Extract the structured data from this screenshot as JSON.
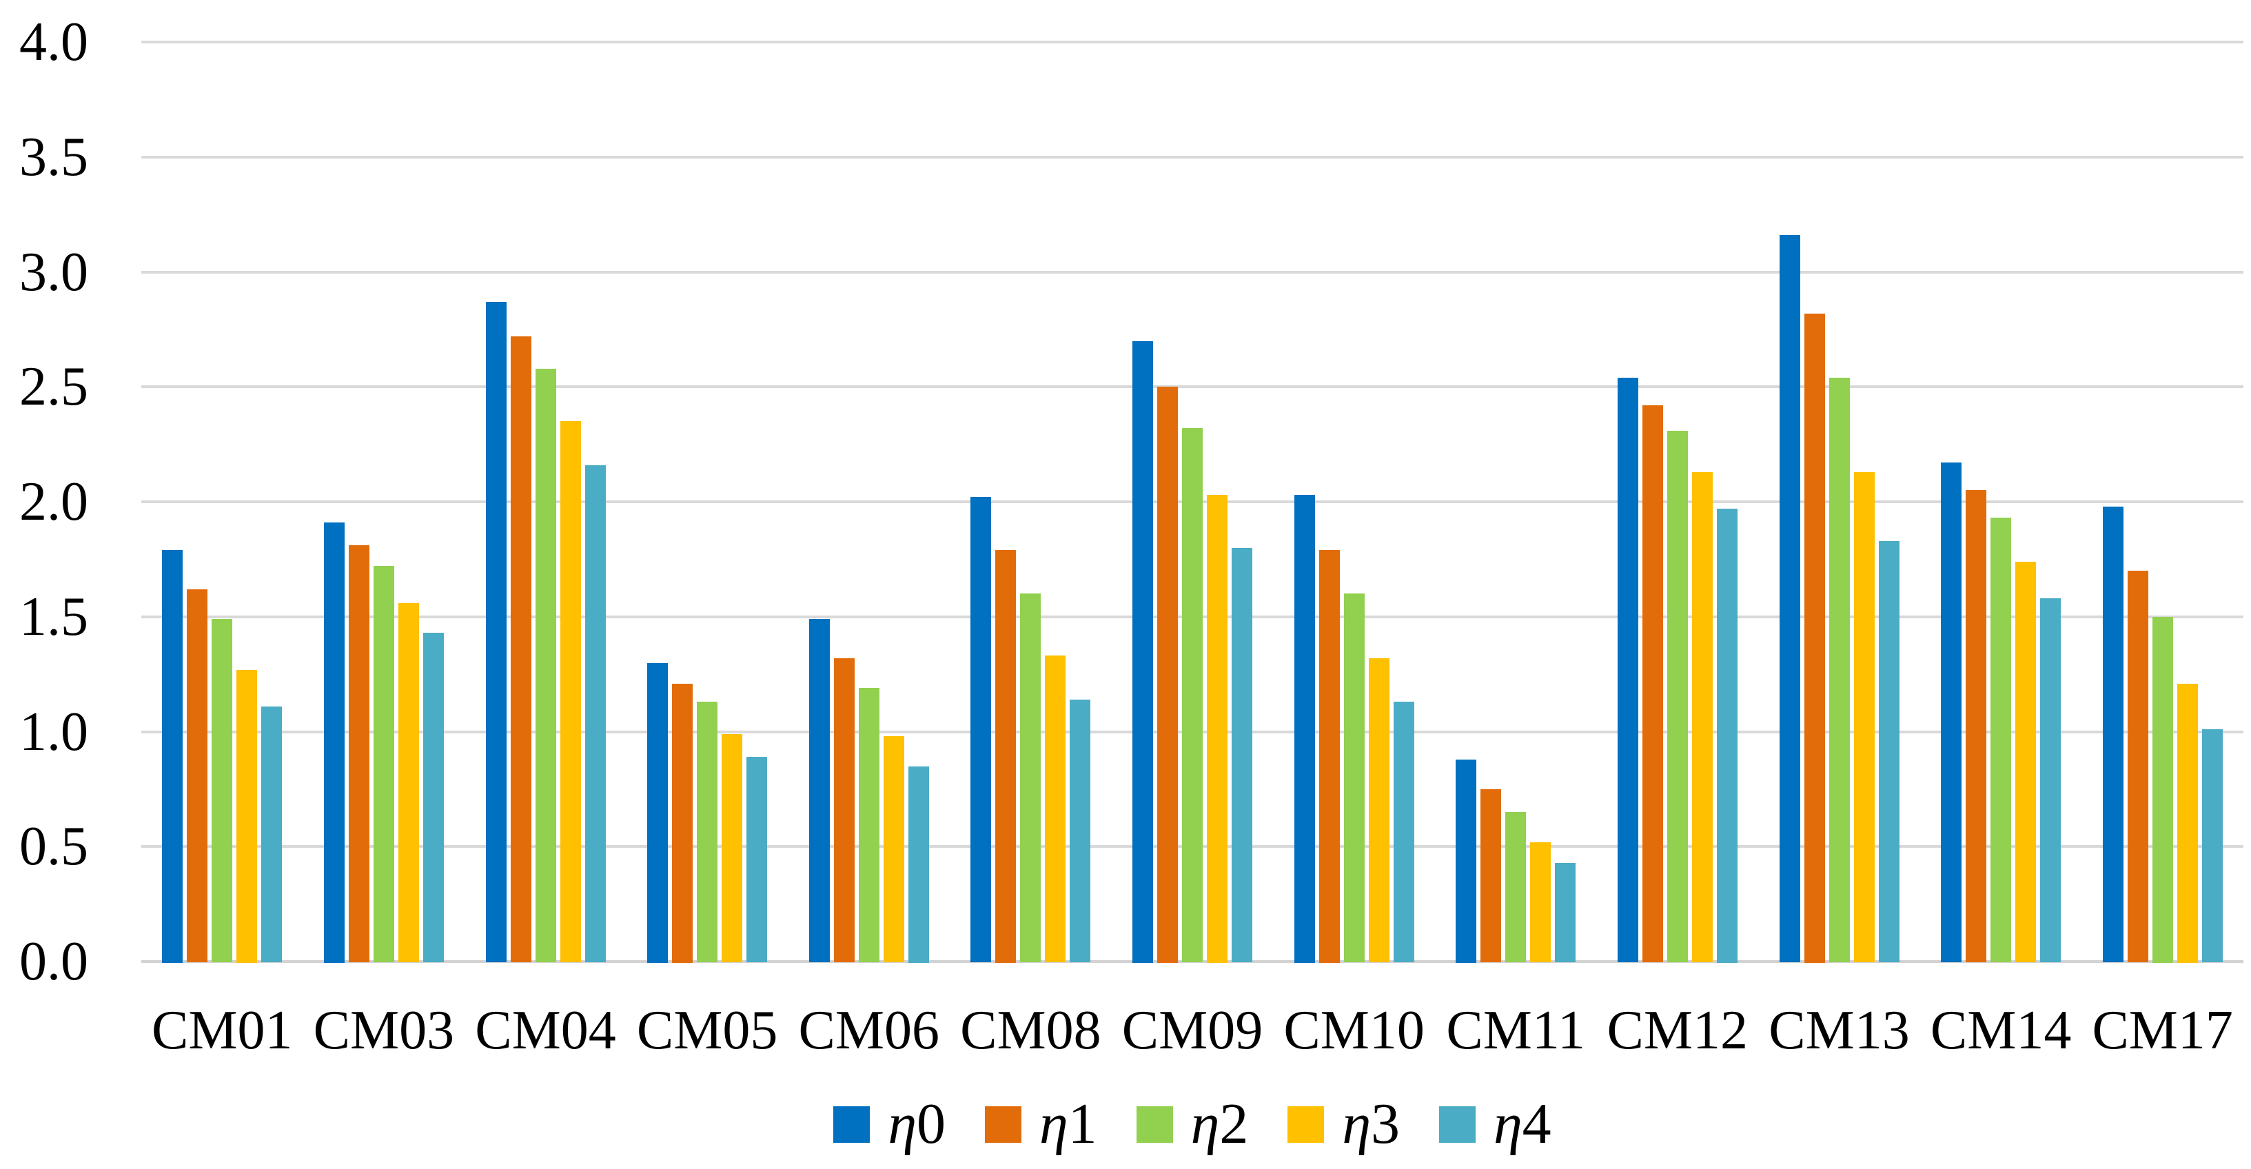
{
  "figure": {
    "background_color": "#FFFFFF",
    "text_color": "#000000",
    "gridline_color": "#D9D9D9",
    "axis_line_color": "#D2D2D2"
  },
  "chart_data": {
    "type": "bar",
    "title": "",
    "xlabel": "",
    "ylabel": "",
    "grid": "horizontal",
    "legend_position": "bottom",
    "ylim": [
      0.0,
      4.0
    ],
    "ytick_step": 0.5,
    "ytick_labels": [
      "4.0",
      "3.5",
      "3.0",
      "2.5",
      "2.0",
      "1.5",
      "1.0",
      "0.5",
      "0.0"
    ],
    "categories": [
      "CM01",
      "CM03",
      "CM04",
      "CM05",
      "CM06",
      "CM08",
      "CM09",
      "CM10",
      "CM11",
      "CM12",
      "CM13",
      "CM14",
      "CM17"
    ],
    "series": [
      {
        "name": "η0",
        "color": "#0070C0",
        "values": [
          1.79,
          1.91,
          2.87,
          1.3,
          1.49,
          2.02,
          2.7,
          2.03,
          0.88,
          2.54,
          3.16,
          2.17,
          1.98
        ]
      },
      {
        "name": "η1",
        "color": "#E36C0A",
        "values": [
          1.62,
          1.81,
          2.72,
          1.21,
          1.32,
          1.79,
          2.5,
          1.79,
          0.75,
          2.42,
          2.82,
          2.05,
          1.7
        ]
      },
      {
        "name": "η2",
        "color": "#92D050",
        "values": [
          1.49,
          1.72,
          2.58,
          1.13,
          1.19,
          1.6,
          2.32,
          1.6,
          0.65,
          2.31,
          2.54,
          1.93,
          1.5
        ]
      },
      {
        "name": "η3",
        "color": "#FFC000",
        "values": [
          1.27,
          1.56,
          2.35,
          0.99,
          0.98,
          1.33,
          2.03,
          1.32,
          0.52,
          2.13,
          2.13,
          1.74,
          1.21
        ]
      },
      {
        "name": "η4",
        "color": "#4BACC6",
        "values": [
          1.11,
          1.43,
          2.16,
          0.89,
          0.85,
          1.14,
          1.8,
          1.13,
          0.43,
          1.97,
          1.83,
          1.58,
          1.01
        ]
      }
    ]
  }
}
